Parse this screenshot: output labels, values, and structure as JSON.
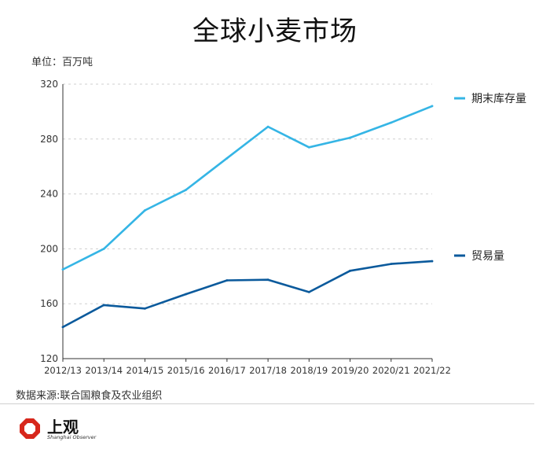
{
  "title": "全球小麦市场",
  "unit_label": "单位：百万吨",
  "source": "数据来源:联合国粮食及农业组织",
  "brand": {
    "name": "上观",
    "subtitle": "Shanghai Observer",
    "color": "#d7271c"
  },
  "chart_data": {
    "type": "line",
    "title": "全球小麦市场",
    "xlabel": "",
    "ylabel": "",
    "categories": [
      "2012/13",
      "2013/14",
      "2014/15",
      "2015/16",
      "2016/17",
      "2017/18",
      "2018/19",
      "2019/20",
      "2020/21",
      "2021/22"
    ],
    "ylim": [
      120,
      320
    ],
    "yticks": [
      120,
      160,
      200,
      240,
      280,
      320
    ],
    "grid": true,
    "legend": "right",
    "series": [
      {
        "name": "期末库存量",
        "color": "#35b5e5",
        "values": [
          185,
          200,
          228,
          243,
          266,
          289,
          274,
          281,
          292,
          304
        ]
      },
      {
        "name": "贸易量",
        "color": "#0b5a9c",
        "values": [
          143,
          159,
          156.5,
          167,
          177,
          177.5,
          168.5,
          184,
          189,
          191
        ]
      }
    ]
  }
}
